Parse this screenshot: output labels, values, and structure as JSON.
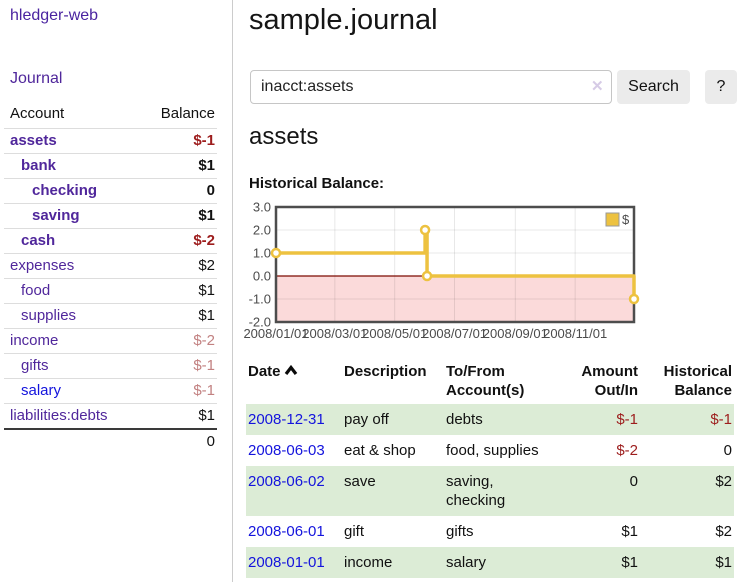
{
  "app_title": "hledger-web",
  "sidebar": {
    "journal_link": "Journal",
    "accounts_table": {
      "headers": {
        "account": "Account",
        "balance": "Balance"
      },
      "rows": [
        {
          "name": "assets",
          "indent": 0,
          "bold": true,
          "link_color": "purple",
          "balance": "$-1",
          "balance_color": "negative"
        },
        {
          "name": "bank",
          "indent": 1,
          "bold": true,
          "link_color": "purple",
          "balance": "$1",
          "balance_color": "normal"
        },
        {
          "name": "checking",
          "indent": 2,
          "bold": true,
          "link_color": "purple",
          "balance": "0",
          "balance_color": "normal"
        },
        {
          "name": "saving",
          "indent": 2,
          "bold": true,
          "link_color": "purple",
          "balance": "$1",
          "balance_color": "normal"
        },
        {
          "name": "cash",
          "indent": 1,
          "bold": true,
          "link_color": "purple",
          "balance": "$-2",
          "balance_color": "negative"
        },
        {
          "name": "expenses",
          "indent": 0,
          "bold": false,
          "link_color": "purple",
          "balance": "$2",
          "balance_color": "normal"
        },
        {
          "name": "food",
          "indent": 1,
          "bold": false,
          "link_color": "purple",
          "balance": "$1",
          "balance_color": "normal"
        },
        {
          "name": "supplies",
          "indent": 1,
          "bold": false,
          "link_color": "purple",
          "balance": "$1",
          "balance_color": "normal"
        },
        {
          "name": "income",
          "indent": 0,
          "bold": false,
          "link_color": "purple",
          "balance": "$-2",
          "balance_color": "negative-pale"
        },
        {
          "name": "gifts",
          "indent": 1,
          "bold": false,
          "link_color": "purple",
          "balance": "$-1",
          "balance_color": "negative-pale"
        },
        {
          "name": "salary",
          "indent": 1,
          "bold": false,
          "link_color": "blue",
          "balance": "$-1",
          "balance_color": "negative-pale"
        },
        {
          "name": "liabilities:debts",
          "indent": 0,
          "bold": false,
          "link_color": "purple",
          "balance": "$1",
          "balance_color": "normal"
        }
      ],
      "total": "0"
    }
  },
  "main": {
    "title": "sample.journal",
    "search": {
      "value": "inacct:assets",
      "clear_icon": "✕",
      "button": "Search",
      "help_button": "?"
    },
    "account_heading": "assets",
    "chart_heading": "Historical Balance:",
    "register": {
      "headers": {
        "date": "Date",
        "description": "Description",
        "accounts": "To/From Account(s)",
        "amount": "Amount Out/In",
        "balance": "Historical Balance"
      },
      "rows": [
        {
          "date": "2008-12-31",
          "description": "pay off",
          "accounts": "debts",
          "amount": "$-1",
          "amount_color": "negative",
          "balance": "$-1",
          "balance_color": "negative",
          "highlight": true
        },
        {
          "date": "2008-06-03",
          "description": "eat & shop",
          "accounts": "food, supplies",
          "amount": "$-2",
          "amount_color": "negative",
          "balance": "0",
          "balance_color": "normal",
          "highlight": false
        },
        {
          "date": "2008-06-02",
          "description": "save",
          "accounts": "saving, checking",
          "amount": "0",
          "amount_color": "normal",
          "balance": "$2",
          "balance_color": "normal",
          "highlight": true
        },
        {
          "date": "2008-06-01",
          "description": "gift",
          "accounts": "gifts",
          "amount": "$1",
          "amount_color": "normal",
          "balance": "$2",
          "balance_color": "normal",
          "highlight": false
        },
        {
          "date": "2008-01-01",
          "description": "income",
          "accounts": "salary",
          "amount": "$1",
          "amount_color": "normal",
          "balance": "$1",
          "balance_color": "normal",
          "highlight": true
        }
      ]
    }
  },
  "chart_data": {
    "type": "line",
    "step": true,
    "title": "Historical Balance",
    "series": [
      {
        "name": "$",
        "color": "#edc240",
        "points": [
          [
            "2008-01-01",
            1
          ],
          [
            "2008-06-01",
            2
          ],
          [
            "2008-06-03",
            0
          ],
          [
            "2008-12-31",
            -1
          ]
        ]
      }
    ],
    "x_range": [
      "2008-01-01",
      "2008-12-31"
    ],
    "ylim": [
      -2,
      3
    ],
    "x_ticks": [
      {
        "label": "2008/01/01",
        "date": "2008-01-01"
      },
      {
        "label": "2008/03/01",
        "date": "2008-03-01"
      },
      {
        "label": "2008/05/01",
        "date": "2008-05-01"
      },
      {
        "label": "2008/07/01",
        "date": "2008-07-01"
      },
      {
        "label": "2008/09/01",
        "date": "2008-09-01"
      },
      {
        "label": "2008/11/01",
        "date": "2008-11-01"
      }
    ],
    "y_ticks": [
      {
        "label": "3.0",
        "value": 3
      },
      {
        "label": "2.0",
        "value": 2
      },
      {
        "label": "1.0",
        "value": 1
      },
      {
        "label": "0.0",
        "value": 0
      },
      {
        "label": "-1.0",
        "value": -1
      },
      {
        "label": "-2.0",
        "value": -2
      }
    ],
    "grid": true,
    "legend": {
      "label": "$",
      "position": "top-right"
    },
    "negative_region_color": "#fbdada",
    "zero_line_color": "#7c0a02",
    "plot_border_color": "#4d4d4d",
    "tick_label_color": "#4b4b4b"
  },
  "colors": {
    "link_purple": "#50279b",
    "link_blue": "#1414dd",
    "negative": "#9d1d1d",
    "negative_pale": "#c28181",
    "row_green": "#dcecd6"
  }
}
